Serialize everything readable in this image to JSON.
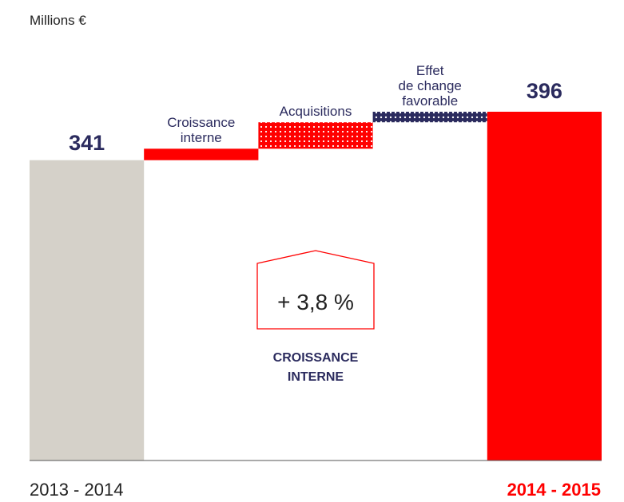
{
  "chart_data": {
    "type": "waterfall",
    "unit_label": "Millions €",
    "start": {
      "label": "2013 - 2014",
      "value": 341,
      "color": "#d5d1c9"
    },
    "steps": [
      {
        "name": "Croissance\ninterne",
        "value": 13,
        "color": "#ff0000",
        "pattern": "solid"
      },
      {
        "name": "Acquisitions",
        "value": 30,
        "color": "#ff0000",
        "pattern": "dots"
      },
      {
        "name": "Effet\nde change\nfavorable",
        "value": 12,
        "color": "#2b2b5e",
        "pattern": "dots"
      }
    ],
    "end": {
      "label": "2014 - 2015",
      "value": 396,
      "color": "#ff0000"
    },
    "annotation": {
      "value_text": "+ 3,8 %",
      "caption": "CROISSANCE\nINTERNE"
    }
  }
}
